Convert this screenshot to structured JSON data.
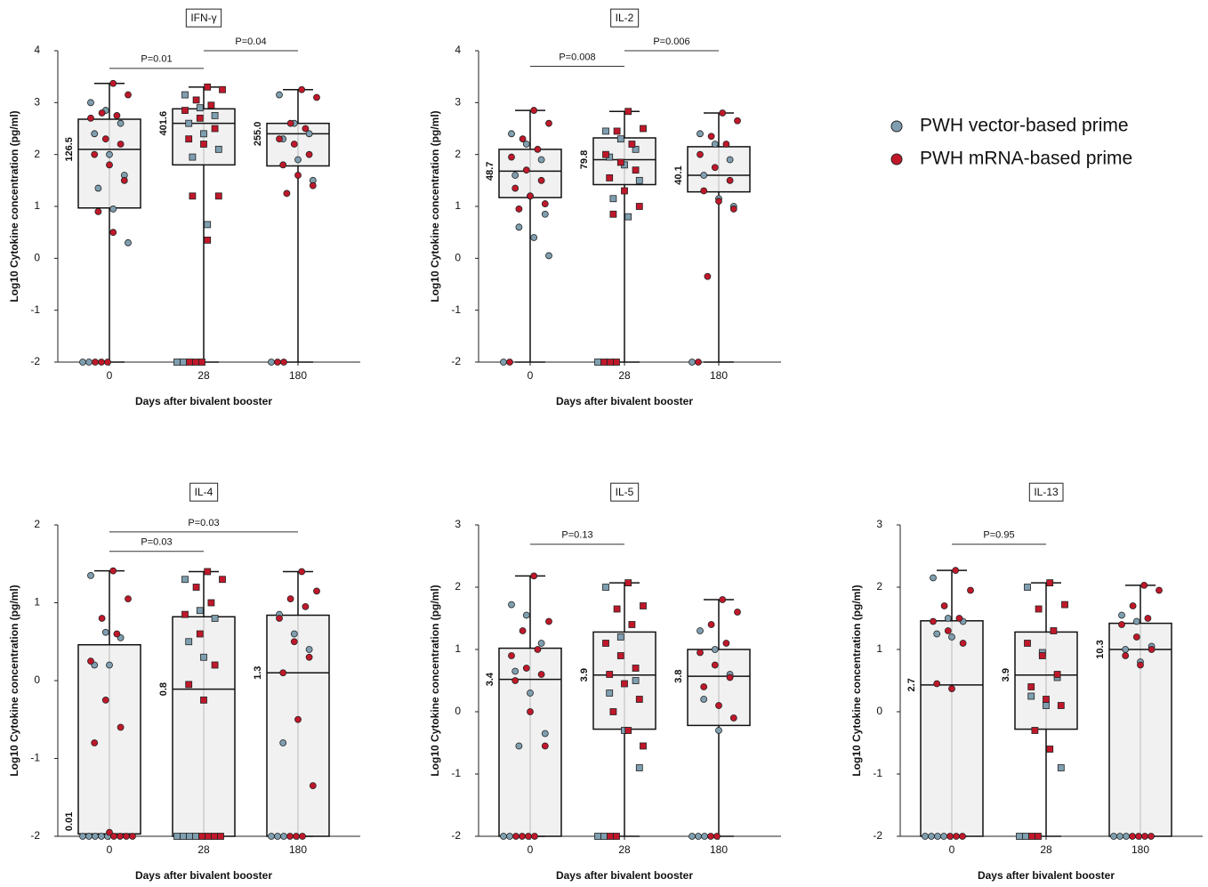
{
  "legend": [
    {
      "name": "PWH vector-based prime",
      "color": "#7f9fb0"
    },
    {
      "name": "PWH mRNA-based prime",
      "color": "#c0182a"
    }
  ],
  "chart_data": [
    {
      "type": "box",
      "title": "IFN-γ",
      "xlabel": "Days after bivalent booster",
      "ylabel": "Log10 Cytokine concentration (pg/ml)",
      "categories": [
        "0",
        "28",
        "180"
      ],
      "markers": [
        "circle",
        "square",
        "circle"
      ],
      "ylim": [
        -2,
        4
      ],
      "yticks": [
        -2,
        -1,
        0,
        1,
        2,
        3,
        4
      ],
      "boxes": [
        {
          "min": -2,
          "q1": 0.97,
          "median": 2.1,
          "q3": 2.68,
          "max": 3.37,
          "label": "126.5"
        },
        {
          "min": -2,
          "q1": 1.8,
          "median": 2.6,
          "q3": 2.88,
          "max": 3.3,
          "label": "401.6"
        },
        {
          "min": -2,
          "q1": 1.78,
          "median": 2.4,
          "q3": 2.6,
          "max": 3.25,
          "label": "255.0"
        }
      ],
      "series": [
        {
          "color": "#7f9fb0",
          "values": [
            [
              3.0,
              2.85,
              2.6,
              2.4,
              2.0,
              1.6,
              1.35,
              0.95,
              0.3,
              -2,
              -2
            ],
            [
              3.15,
              2.9,
              2.75,
              2.6,
              2.4,
              2.1,
              1.95,
              0.65,
              -2,
              -2
            ],
            [
              3.15,
              2.6,
              2.4,
              2.3,
              1.9,
              1.5,
              -2
            ]
          ]
        },
        {
          "color": "#c0182a",
          "values": [
            [
              3.37,
              3.15,
              2.8,
              2.75,
              2.7,
              2.3,
              2.2,
              2.0,
              1.8,
              1.5,
              0.9,
              0.5,
              -2,
              -2,
              -2
            ],
            [
              3.3,
              3.25,
              3.05,
              2.95,
              2.85,
              2.7,
              2.5,
              2.3,
              2.2,
              1.2,
              1.2,
              0.35,
              -2,
              -2,
              -2
            ],
            [
              3.25,
              3.1,
              2.6,
              2.5,
              2.3,
              2.2,
              2.0,
              1.8,
              1.6,
              1.4,
              1.25,
              -2,
              -2
            ]
          ]
        }
      ],
      "annotations": [
        {
          "text": "P=0.01",
          "from": 0,
          "to": 1,
          "y": 3.66
        },
        {
          "text": "P=0.04",
          "from": 1,
          "to": 2,
          "y": 4.0
        }
      ]
    },
    {
      "type": "box",
      "title": "IL-2",
      "xlabel": "Days after bivalent booster",
      "ylabel": "Log10 Cytokine concentration (pg/ml)",
      "categories": [
        "0",
        "28",
        "180"
      ],
      "markers": [
        "circle",
        "square",
        "circle"
      ],
      "ylim": [
        -2,
        4
      ],
      "yticks": [
        -2,
        -1,
        0,
        1,
        2,
        3,
        4
      ],
      "boxes": [
        {
          "min": -2,
          "q1": 1.17,
          "median": 1.68,
          "q3": 2.1,
          "max": 2.85,
          "label": "48.7"
        },
        {
          "min": -2,
          "q1": 1.42,
          "median": 1.9,
          "q3": 2.32,
          "max": 2.83,
          "label": "79.8"
        },
        {
          "min": -2,
          "q1": 1.28,
          "median": 1.6,
          "q3": 2.15,
          "max": 2.8,
          "label": "40.1"
        }
      ],
      "series": [
        {
          "color": "#7f9fb0",
          "values": [
            [
              2.4,
              2.2,
              1.9,
              1.6,
              1.2,
              0.85,
              0.6,
              0.4,
              0.05,
              -2
            ],
            [
              2.45,
              2.3,
              2.1,
              1.95,
              1.8,
              1.5,
              1.15,
              0.8,
              -2
            ],
            [
              2.4,
              2.2,
              1.9,
              1.6,
              1.15,
              1.0,
              -2
            ]
          ]
        },
        {
          "color": "#c0182a",
          "values": [
            [
              2.85,
              2.6,
              2.3,
              2.1,
              1.95,
              1.7,
              1.5,
              1.35,
              1.2,
              1.05,
              0.95,
              -2
            ],
            [
              2.83,
              2.5,
              2.45,
              2.2,
              2.0,
              1.85,
              1.7,
              1.55,
              1.3,
              1.0,
              0.85,
              -2,
              -2,
              -2
            ],
            [
              2.8,
              2.65,
              2.35,
              2.2,
              2.0,
              1.75,
              1.5,
              1.3,
              1.1,
              0.95,
              -0.35,
              -2
            ]
          ]
        }
      ],
      "annotations": [
        {
          "text": "P=0.008",
          "from": 0,
          "to": 1,
          "y": 3.7
        },
        {
          "text": "P=0.006",
          "from": 1,
          "to": 2,
          "y": 4.0
        }
      ]
    },
    {
      "type": "box",
      "title": "IL-4",
      "xlabel": "Days after bivalent booster",
      "ylabel": "Log10 Cytokine concentration (pg/ml)",
      "categories": [
        "0",
        "28",
        "180"
      ],
      "markers": [
        "circle",
        "square",
        "circle"
      ],
      "ylim": [
        -2,
        2
      ],
      "yticks": [
        -2,
        -1,
        0,
        1,
        2
      ],
      "boxes": [
        {
          "min": -2,
          "q1": -1.97,
          "median": -1.97,
          "q3": 0.46,
          "max": 1.41,
          "label": "0.01"
        },
        {
          "min": -2,
          "q1": -2,
          "median": -0.11,
          "q3": 0.82,
          "max": 1.4,
          "label": "0.8"
        },
        {
          "min": -2,
          "q1": -2,
          "median": 0.1,
          "q3": 0.84,
          "max": 1.4,
          "label": "1.3"
        }
      ],
      "series": [
        {
          "color": "#7f9fb0",
          "values": [
            [
              1.35,
              0.62,
              0.55,
              0.2,
              0.2,
              -2,
              -2,
              -2,
              -2,
              -2
            ],
            [
              1.3,
              0.9,
              0.8,
              0.5,
              0.3,
              -2,
              -2,
              -2,
              -2
            ],
            [
              0.85,
              0.6,
              0.4,
              -0.8,
              -2,
              -2,
              -2
            ]
          ]
        },
        {
          "color": "#c0182a",
          "values": [
            [
              1.41,
              1.05,
              0.8,
              0.6,
              0.25,
              -0.25,
              -0.6,
              -0.8,
              -1.95,
              -2,
              -2,
              -2,
              -2
            ],
            [
              1.4,
              1.3,
              1.2,
              1.0,
              0.85,
              0.6,
              0.2,
              -0.05,
              -0.25,
              -2,
              -2,
              -2,
              -2
            ],
            [
              1.4,
              1.15,
              1.05,
              0.95,
              0.8,
              0.5,
              0.3,
              0.1,
              -0.5,
              -1.35,
              -2,
              -2,
              -2
            ]
          ]
        }
      ],
      "annotations": [
        {
          "text": "P=0.03",
          "from": 0,
          "to": 1,
          "y": 1.66
        },
        {
          "text": "P=0.03",
          "from": 0,
          "to": 2,
          "y": 1.91
        }
      ]
    },
    {
      "type": "box",
      "title": "IL-5",
      "xlabel": "Days after bivalent booster",
      "ylabel": "Log10 Cytokine concentration (pg/ml)",
      "categories": [
        "0",
        "28",
        "180"
      ],
      "markers": [
        "circle",
        "square",
        "circle"
      ],
      "ylim": [
        -2,
        3
      ],
      "yticks": [
        -2,
        -1,
        0,
        1,
        2,
        3
      ],
      "boxes": [
        {
          "min": -2,
          "q1": -2,
          "median": 0.52,
          "q3": 1.02,
          "max": 2.18,
          "label": "3.4"
        },
        {
          "min": -2,
          "q1": -0.28,
          "median": 0.59,
          "q3": 1.28,
          "max": 2.07,
          "label": "3.9"
        },
        {
          "min": -2,
          "q1": -0.22,
          "median": 0.57,
          "q3": 1.0,
          "max": 1.8,
          "label": "3.8"
        }
      ],
      "series": [
        {
          "color": "#7f9fb0",
          "values": [
            [
              1.72,
              1.55,
              1.1,
              0.65,
              0.3,
              -0.35,
              -0.55,
              -2,
              -2
            ],
            [
              2.0,
              1.2,
              0.5,
              0.3,
              -0.3,
              -0.9,
              -2,
              -2
            ],
            [
              1.3,
              1.0,
              0.6,
              0.2,
              -0.3,
              -2,
              -2,
              -2
            ]
          ]
        },
        {
          "color": "#c0182a",
          "values": [
            [
              2.18,
              1.45,
              1.3,
              1.0,
              0.9,
              0.7,
              0.6,
              0.5,
              0.0,
              -0.55,
              -2,
              -2,
              -2,
              -2
            ],
            [
              2.07,
              1.7,
              1.65,
              1.4,
              1.1,
              0.9,
              0.7,
              0.6,
              0.45,
              0.2,
              0.0,
              -0.3,
              -0.55,
              -2,
              -2
            ],
            [
              1.8,
              1.6,
              1.4,
              1.1,
              0.95,
              0.75,
              0.55,
              0.4,
              0.1,
              -0.1,
              -2,
              -2
            ]
          ]
        }
      ],
      "annotations": [
        {
          "text": "P=0.13",
          "from": 0,
          "to": 1,
          "y": 2.69
        }
      ]
    },
    {
      "type": "box",
      "title": "IL-13",
      "xlabel": "Days after bivalent booster",
      "ylabel": "Log10 Cytokine concentration (pg/ml)",
      "categories": [
        "0",
        "28",
        "180"
      ],
      "markers": [
        "circle",
        "square",
        "circle"
      ],
      "ylim": [
        -2,
        3
      ],
      "yticks": [
        -2,
        -1,
        0,
        1,
        2,
        3
      ],
      "boxes": [
        {
          "min": -2,
          "q1": -2,
          "median": 0.43,
          "q3": 1.46,
          "max": 2.27,
          "label": "2.7"
        },
        {
          "min": -2,
          "q1": -0.28,
          "median": 0.59,
          "q3": 1.28,
          "max": 2.07,
          "label": "3.9"
        },
        {
          "min": -2,
          "q1": -2,
          "median": 1.0,
          "q3": 1.42,
          "max": 2.03,
          "label": "10.3"
        }
      ],
      "series": [
        {
          "color": "#7f9fb0",
          "values": [
            [
              2.15,
              1.5,
              1.45,
              1.25,
              1.2,
              -2,
              -2,
              -2,
              -2
            ],
            [
              2.0,
              0.95,
              0.55,
              0.25,
              0.1,
              -0.9,
              -2,
              -2
            ],
            [
              1.55,
              1.45,
              1.05,
              1.0,
              0.8,
              -2,
              -2,
              -2
            ]
          ]
        },
        {
          "color": "#c0182a",
          "values": [
            [
              2.27,
              1.95,
              1.7,
              1.5,
              1.45,
              1.3,
              1.1,
              0.45,
              0.37,
              -2,
              -2,
              -2
            ],
            [
              2.07,
              1.72,
              1.65,
              1.3,
              1.1,
              0.9,
              0.6,
              0.4,
              0.2,
              0.1,
              -0.3,
              -0.6,
              -2,
              -2
            ],
            [
              2.03,
              1.95,
              1.7,
              1.5,
              1.4,
              1.2,
              1.0,
              0.9,
              0.75,
              -2,
              -2,
              -2,
              -2
            ]
          ]
        }
      ],
      "annotations": [
        {
          "text": "P=0.95",
          "from": 0,
          "to": 1,
          "y": 2.69
        }
      ]
    }
  ]
}
